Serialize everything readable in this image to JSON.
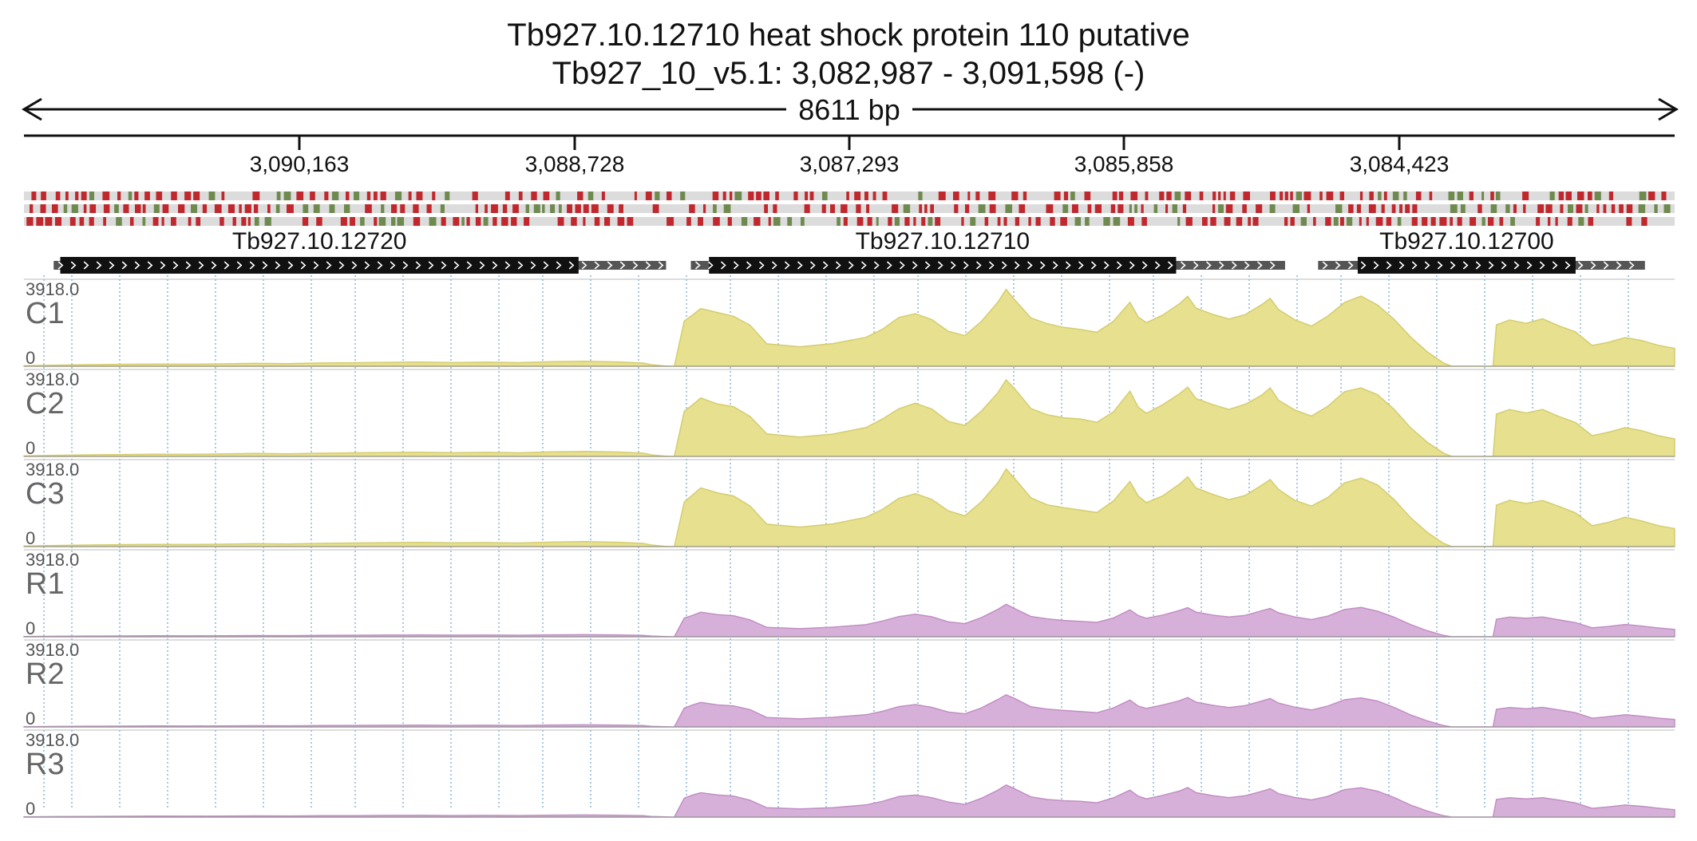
{
  "header": {
    "gene_title": "Tb927.10.12710  heat shock protein 110  putative",
    "location": "Tb927_10_v5.1: 3,082,987 - 3,091,598 (-)"
  },
  "ruler": {
    "span_label": "8611 bp",
    "ticks": [
      "3,090,163",
      "3,088,728",
      "3,087,293",
      "3,085,858",
      "3,084,423"
    ]
  },
  "genes": [
    {
      "id": "Tb927.10.12720",
      "utr_start": 0.018,
      "cds_start": 0.022,
      "cds_end": 0.336,
      "utr_end": 0.389
    },
    {
      "id": "Tb927.10.12710",
      "utr_start": 0.404,
      "cds_start": 0.415,
      "cds_end": 0.698,
      "utr_end": 0.764
    },
    {
      "id": "Tb927.10.12700",
      "utr_start": 0.784,
      "cds_start": 0.808,
      "cds_end": 0.94,
      "utr_end": 0.982
    }
  ],
  "colors": {
    "condition_C": "#e6e08f",
    "condition_C_stroke": "#d4cd6f",
    "condition_R": "#d7b0d9",
    "condition_R_stroke": "#c18fc4",
    "orf_red": "#c0282e",
    "orf_green": "#6f8a4f",
    "orf_track_bg": "#dcdcdc",
    "cds": "#111111",
    "utr": "#555555",
    "gridline": "#6aa3d6"
  },
  "tracks": [
    {
      "label": "C1",
      "max_label": "3918.0",
      "min_label": "0",
      "group": "C"
    },
    {
      "label": "C2",
      "max_label": "3918.0",
      "min_label": "0",
      "group": "C"
    },
    {
      "label": "C3",
      "max_label": "3918.0",
      "min_label": "0",
      "group": "C"
    },
    {
      "label": "R1",
      "max_label": "3918.0",
      "min_label": "0",
      "group": "R"
    },
    {
      "label": "R2",
      "max_label": "3918.0",
      "min_label": "0",
      "group": "R"
    },
    {
      "label": "R3",
      "max_label": "3918.0",
      "min_label": "0",
      "group": "R"
    }
  ]
}
